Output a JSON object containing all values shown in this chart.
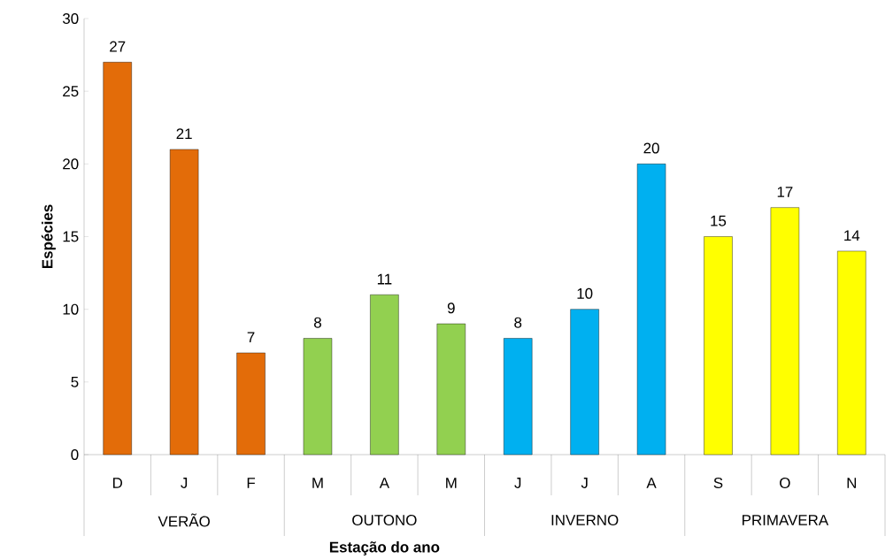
{
  "chart_data": {
    "type": "bar",
    "xlabel": "Estação do ano",
    "ylabel": "Espécies",
    "categories": [
      "D",
      "J",
      "F",
      "M",
      "A",
      "M",
      "J",
      "J",
      "A",
      "S",
      "O",
      "N"
    ],
    "values": [
      27,
      21,
      7,
      8,
      11,
      9,
      8,
      10,
      20,
      15,
      17,
      14
    ],
    "colors": [
      "#e36c09",
      "#e36c09",
      "#e36c09",
      "#92d050",
      "#92d050",
      "#92d050",
      "#00b0f0",
      "#00b0f0",
      "#00b0f0",
      "#ffff00",
      "#ffff00",
      "#ffff00"
    ],
    "annotations": [
      "VERÃO",
      "OUTONO",
      "INVERNO",
      "PRIMAVERA"
    ],
    "ylim": [
      0,
      30
    ],
    "yticks": [
      0,
      5,
      10,
      15,
      20,
      25,
      30
    ],
    "data_labels": true
  }
}
